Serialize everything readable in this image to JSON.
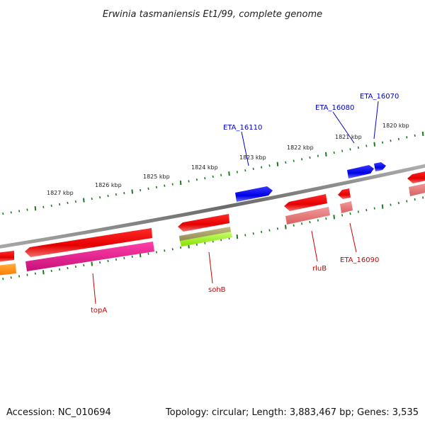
{
  "title": "Erwinia tasmaniensis Et1/99, complete genome",
  "footer": {
    "accession": "Accession: NC_010694",
    "summary": "Topology: circular; Length: 3,883,467 bp; Genes: 3,535"
  },
  "colors": {
    "backbone": "#7a7a7a",
    "tick": "#1d7a1d",
    "forward_label": "#0000cc",
    "reverse_label": "#cc0000",
    "cds_forward": "#0a0ae6",
    "cds_reverse": "#e60a0a",
    "cog_salmon": "#e87878",
    "cog_magenta": "#e0158a",
    "cog_olive": "#a8a060",
    "cog_lime": "#a8ff30",
    "cog_orange": "#ff8c00"
  },
  "scale_labels": [
    "1820 kbp",
    "1821 kbp",
    "1822 kbp",
    "1823 kbp",
    "1824 kbp",
    "1825 kbp",
    "1826 kbp",
    "1827 kbp"
  ],
  "gene_labels": {
    "forward": [
      "ETA_16070",
      "ETA_16080",
      "ETA_16110"
    ],
    "reverse": [
      "topA",
      "sohB",
      "rluB",
      "ETA_16090"
    ]
  }
}
